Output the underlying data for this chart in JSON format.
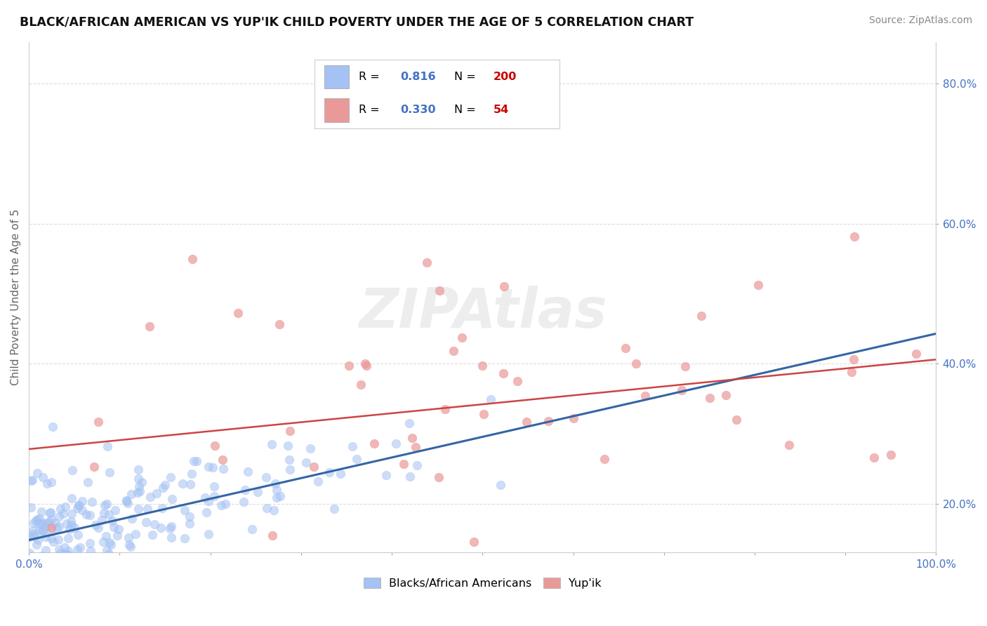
{
  "title": "BLACK/AFRICAN AMERICAN VS YUP'IK CHILD POVERTY UNDER THE AGE OF 5 CORRELATION CHART",
  "source": "Source: ZipAtlas.com",
  "ylabel": "Child Poverty Under the Age of 5",
  "xlim": [
    0.0,
    1.0
  ],
  "ylim": [
    0.13,
    0.86
  ],
  "xticks": [
    0.0,
    0.1,
    0.2,
    0.3,
    0.4,
    0.5,
    0.6,
    0.7,
    0.8,
    0.9,
    1.0
  ],
  "xtick_labels": [
    "0.0%",
    "",
    "",
    "",
    "",
    "",
    "",
    "",
    "",
    "",
    "100.0%"
  ],
  "yticks": [
    0.2,
    0.4,
    0.6,
    0.8
  ],
  "ytick_labels": [
    "20.0%",
    "40.0%",
    "60.0%",
    "80.0%"
  ],
  "blue_color": "#a4c2f4",
  "pink_color": "#ea9999",
  "blue_line_color": "#3465a4",
  "pink_line_color": "#cc4444",
  "legend_R1": "0.816",
  "legend_N1": "200",
  "legend_R2": "0.330",
  "legend_N2": "54",
  "legend_label1": "Blacks/African Americans",
  "legend_label2": "Yup'ik",
  "watermark": "ZIPAtlas",
  "watermark_color": "#cccccc",
  "background_color": "#ffffff",
  "grid_color": "#dddddd",
  "blue_seed": 42,
  "pink_seed": 7,
  "blue_intercept": 0.148,
  "blue_slope": 0.295,
  "pink_intercept": 0.278,
  "pink_slope": 0.128,
  "tick_color": "#4472c4",
  "marker_size": 80,
  "blue_alpha": 0.55,
  "pink_alpha": 0.7
}
